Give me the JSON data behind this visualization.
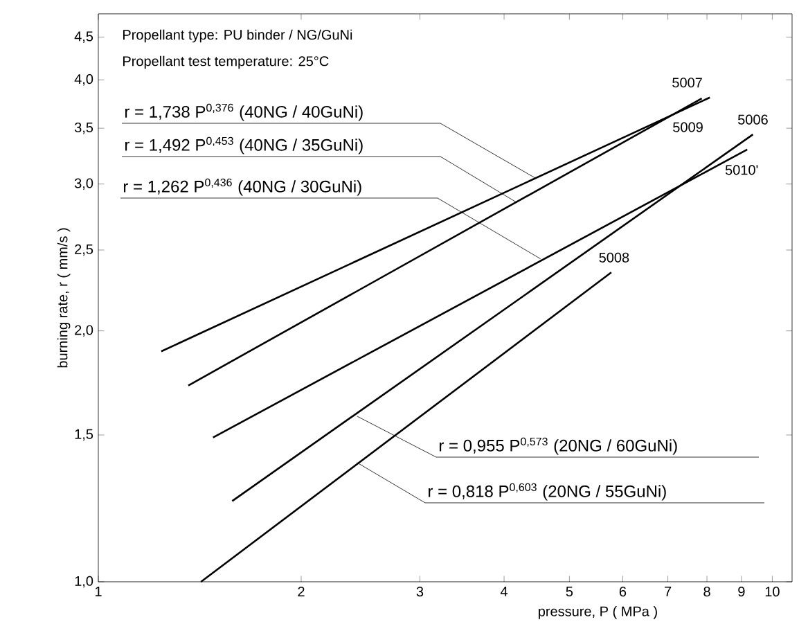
{
  "chart_data": {
    "type": "line",
    "log": "xy",
    "xlabel": "pressure, P ( MPa )",
    "ylabel": "burning rate, r ( mm/s )",
    "xlim": [
      1,
      10.7
    ],
    "ylim": [
      1,
      4.8
    ],
    "xticks": [
      1,
      2,
      3,
      4,
      5,
      6,
      7,
      8,
      9,
      10
    ],
    "yticks": [
      {
        "value": 1.0,
        "label": "1,0"
      },
      {
        "value": 1.5,
        "label": "1,5"
      },
      {
        "value": 2.0,
        "label": "2,0"
      },
      {
        "value": 2.5,
        "label": "2,5"
      },
      {
        "value": 3.0,
        "label": "3,0"
      },
      {
        "value": 3.5,
        "label": "3,5"
      },
      {
        "value": 4.0,
        "label": "4,0"
      },
      {
        "value": 4.5,
        "label": "4,5"
      }
    ],
    "marker": "none",
    "line_style": "solid",
    "series": [
      {
        "name": "5007",
        "color": "#000000",
        "x": [
          1.24,
          8.08
        ],
        "values": [
          1.89,
          3.81
        ]
      },
      {
        "name": "5009",
        "color": "#000000",
        "x": [
          1.36,
          7.86
        ],
        "values": [
          1.72,
          3.8
        ]
      },
      {
        "name": "5006",
        "color": "#000000",
        "x": [
          1.58,
          9.36
        ],
        "values": [
          1.25,
          3.44
        ]
      },
      {
        "name": "5010'",
        "color": "#000000",
        "x": [
          1.48,
          9.18
        ],
        "values": [
          1.49,
          3.3
        ]
      },
      {
        "name": "5008",
        "color": "#000000",
        "x": [
          1.42,
          5.77
        ],
        "values": [
          1.0,
          2.35
        ]
      }
    ],
    "annotations": [
      "Propellant type: PU binder / NG/GuNi",
      "Propellant test temperature: 25°C",
      {
        "text": "r = 1,738 P$^{0,376}$ (40NG / 40GuNi)",
        "x": 4.45,
        "y": 3.05
      },
      {
        "text": "r = 1,492 P$^{0,453}$ (40NG / 35GuNi)",
        "x": 4.18,
        "y": 2.85
      },
      {
        "text": "r = 1,262 P$^{0,436}$ (40NG / 30GuNi)",
        "x": 4.53,
        "y": 2.44
      },
      {
        "text": "r = 0,955 P$^{0,573}$ (20NG / 60GuNi)",
        "x": 2.42,
        "y": 1.58
      },
      {
        "text": "r = 0,818 P$^{0,603}$ (20NG / 55GuNi)",
        "x": 2.42,
        "y": 1.39
      }
    ]
  }
}
